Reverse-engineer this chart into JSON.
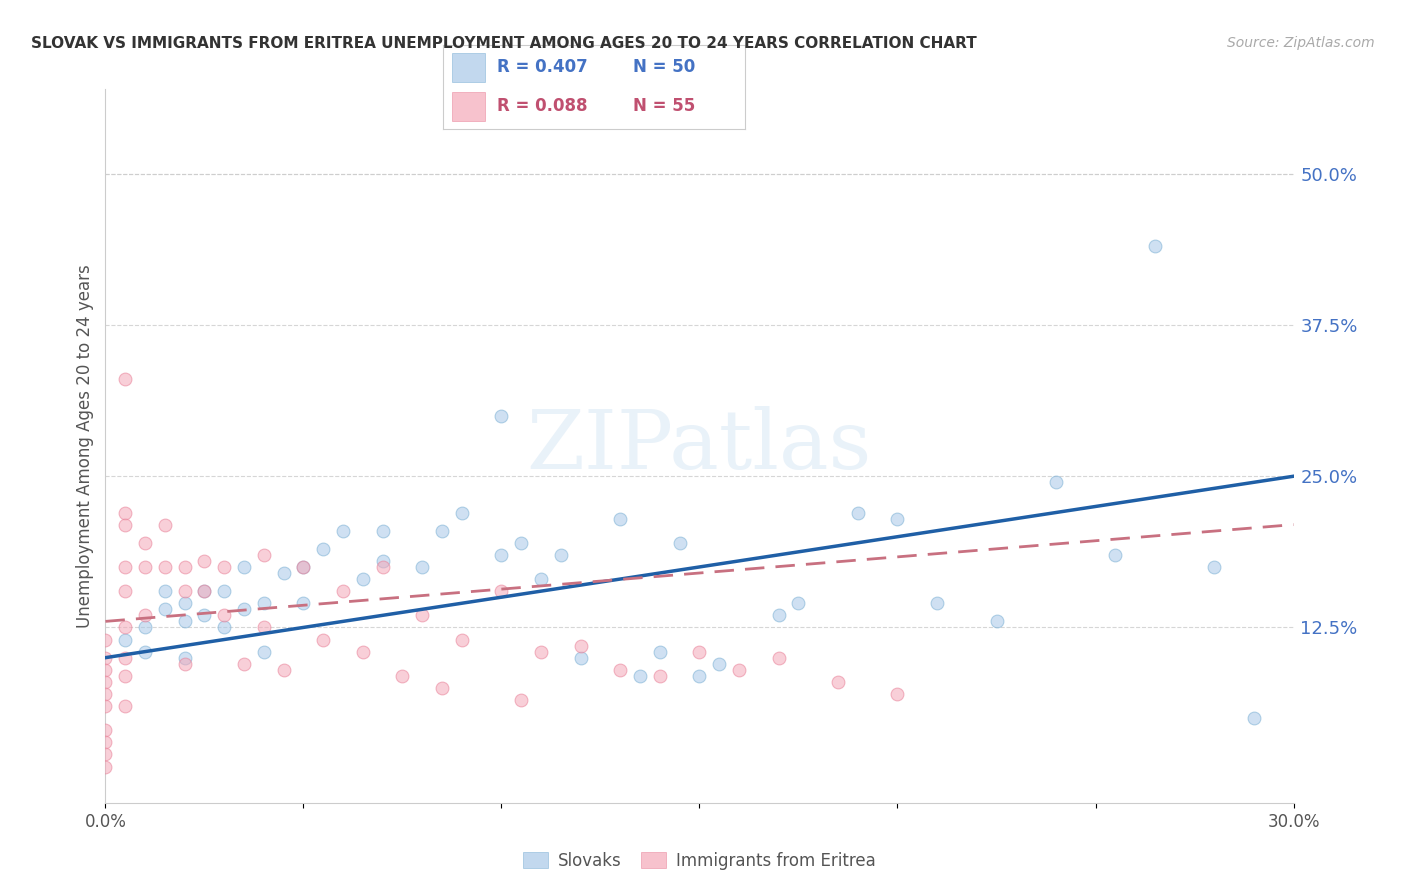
{
  "title": "SLOVAK VS IMMIGRANTS FROM ERITREA UNEMPLOYMENT AMONG AGES 20 TO 24 YEARS CORRELATION CHART",
  "source": "Source: ZipAtlas.com",
  "ylabel": "Unemployment Among Ages 20 to 24 years",
  "xlim": [
    0.0,
    0.3
  ],
  "ylim": [
    -0.02,
    0.57
  ],
  "xticks": [
    0.0,
    0.05,
    0.1,
    0.15,
    0.2,
    0.25,
    0.3
  ],
  "xticklabels": [
    "0.0%",
    "",
    "",
    "",
    "",
    "",
    "30.0%"
  ],
  "right_yticks": [
    0.0,
    0.125,
    0.25,
    0.375,
    0.5
  ],
  "right_yticklabels": [
    "",
    "12.5%",
    "25.0%",
    "37.5%",
    "50.0%"
  ],
  "legend_R_blue": "R = 0.407",
  "legend_N_blue": "N = 50",
  "legend_R_pink": "R = 0.088",
  "legend_N_pink": "N = 55",
  "blue_color": "#a8c8e8",
  "blue_edge_color": "#7aafd4",
  "pink_color": "#f4a8b8",
  "pink_edge_color": "#e88098",
  "trend_blue_color": "#1f5fa6",
  "trend_pink_color": "#c87080",
  "background_color": "#ffffff",
  "watermark_text": "ZIPatlas",
  "slovaks_x": [
    0.005,
    0.01,
    0.01,
    0.015,
    0.015,
    0.02,
    0.02,
    0.02,
    0.025,
    0.025,
    0.03,
    0.03,
    0.035,
    0.035,
    0.04,
    0.04,
    0.045,
    0.05,
    0.05,
    0.055,
    0.06,
    0.065,
    0.07,
    0.07,
    0.08,
    0.085,
    0.09,
    0.1,
    0.1,
    0.105,
    0.11,
    0.115,
    0.12,
    0.13,
    0.135,
    0.14,
    0.145,
    0.15,
    0.155,
    0.17,
    0.175,
    0.19,
    0.2,
    0.21,
    0.225,
    0.24,
    0.255,
    0.265,
    0.28,
    0.29
  ],
  "slovaks_y": [
    0.115,
    0.105,
    0.125,
    0.14,
    0.155,
    0.13,
    0.145,
    0.1,
    0.135,
    0.155,
    0.125,
    0.155,
    0.14,
    0.175,
    0.145,
    0.105,
    0.17,
    0.175,
    0.145,
    0.19,
    0.205,
    0.165,
    0.18,
    0.205,
    0.175,
    0.205,
    0.22,
    0.3,
    0.185,
    0.195,
    0.165,
    0.185,
    0.1,
    0.215,
    0.085,
    0.105,
    0.195,
    0.085,
    0.095,
    0.135,
    0.145,
    0.22,
    0.215,
    0.145,
    0.13,
    0.245,
    0.185,
    0.44,
    0.175,
    0.05
  ],
  "eritrea_x": [
    0.0,
    0.0,
    0.0,
    0.0,
    0.0,
    0.0,
    0.0,
    0.0,
    0.0,
    0.0,
    0.005,
    0.005,
    0.005,
    0.005,
    0.005,
    0.005,
    0.005,
    0.005,
    0.005,
    0.01,
    0.01,
    0.01,
    0.015,
    0.015,
    0.02,
    0.02,
    0.02,
    0.025,
    0.025,
    0.03,
    0.03,
    0.035,
    0.04,
    0.04,
    0.045,
    0.05,
    0.055,
    0.06,
    0.065,
    0.07,
    0.075,
    0.08,
    0.085,
    0.09,
    0.1,
    0.105,
    0.11,
    0.12,
    0.13,
    0.14,
    0.15,
    0.16,
    0.17,
    0.185,
    0.2
  ],
  "eritrea_y": [
    0.1,
    0.09,
    0.08,
    0.07,
    0.06,
    0.04,
    0.03,
    0.02,
    0.01,
    0.115,
    0.33,
    0.22,
    0.21,
    0.175,
    0.155,
    0.125,
    0.1,
    0.085,
    0.06,
    0.195,
    0.175,
    0.135,
    0.21,
    0.175,
    0.175,
    0.155,
    0.095,
    0.18,
    0.155,
    0.175,
    0.135,
    0.095,
    0.185,
    0.125,
    0.09,
    0.175,
    0.115,
    0.155,
    0.105,
    0.175,
    0.085,
    0.135,
    0.075,
    0.115,
    0.155,
    0.065,
    0.105,
    0.11,
    0.09,
    0.085,
    0.105,
    0.09,
    0.1,
    0.08,
    0.07
  ],
  "marker_size": 85,
  "marker_alpha": 0.55,
  "grid_color": "#cccccc",
  "grid_style": "--",
  "grid_alpha": 0.8
}
